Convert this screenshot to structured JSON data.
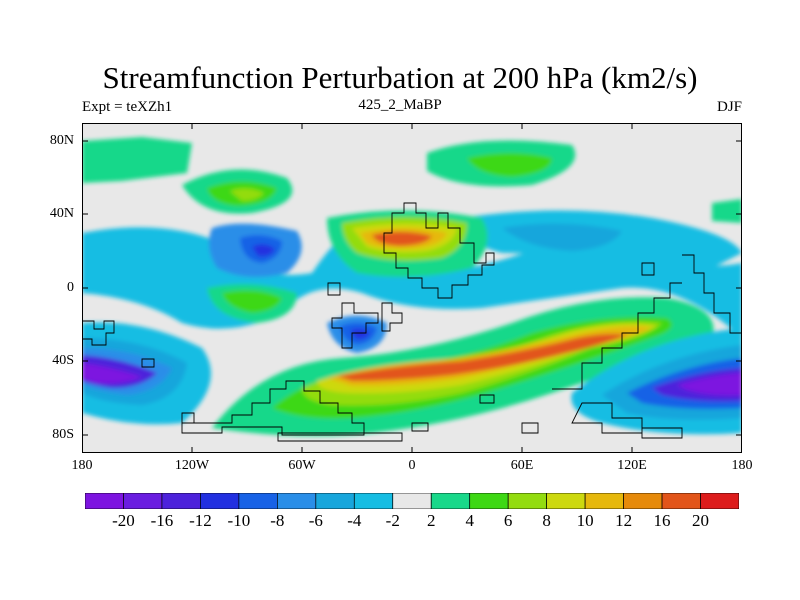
{
  "title": "Streamfunction Perturbation at 200 hPa (km2/s)",
  "left_subtitle": "Expt = teXZh1",
  "center_subtitle": "425_2_MaBP",
  "right_subtitle": "DJF",
  "y_ticks": [
    "80N",
    "40N",
    "0",
    "40S",
    "80S"
  ],
  "x_ticks": [
    "180",
    "120W",
    "60W",
    "0",
    "60E",
    "120E",
    "180"
  ],
  "colorbar": {
    "labels": [
      "-20",
      "-16",
      "-12",
      "-10",
      "-8",
      "-6",
      "-4",
      "-2",
      "2",
      "4",
      "6",
      "8",
      "10",
      "12",
      "16",
      "20"
    ],
    "colors": [
      "#7d14e0",
      "#6a1de0",
      "#4d22db",
      "#2230e0",
      "#1862e6",
      "#2a8ee8",
      "#18a6dc",
      "#16bde3",
      "#e8e8e8",
      "#19d88a",
      "#3ed814",
      "#93dc10",
      "#cdd90f",
      "#e6b80c",
      "#e68a0a",
      "#e2551a",
      "#dd1c1c"
    ]
  },
  "colors": {
    "background": "#e8e8e8",
    "coast": "#000000"
  }
}
